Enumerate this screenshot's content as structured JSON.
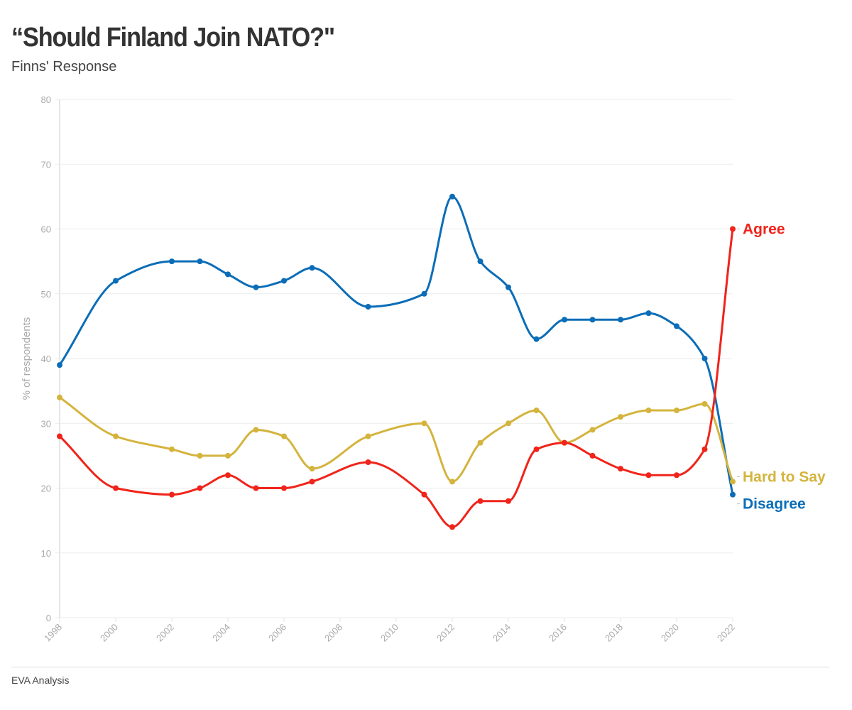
{
  "title": "“Should Finland Join NATO?\"",
  "subtitle": "Finns' Response",
  "source": "EVA Analysis",
  "chart_data": {
    "type": "line",
    "title": "“Should Finland Join NATO?\"",
    "subtitle": "Finns' Response",
    "xlabel": "",
    "ylabel": "% of respondents",
    "xlim": [
      1998,
      2022
    ],
    "ylim": [
      0,
      80
    ],
    "yticks": [
      0,
      10,
      20,
      30,
      40,
      50,
      60,
      70,
      80
    ],
    "xticks": [
      1998,
      2000,
      2002,
      2004,
      2006,
      2008,
      2010,
      2012,
      2014,
      2016,
      2018,
      2020,
      2022
    ],
    "grid": true,
    "legend": "direct-labels-right",
    "x": [
      1998,
      2000,
      2002,
      2003,
      2004,
      2005,
      2006,
      2007,
      2009,
      2011,
      2012,
      2013,
      2014,
      2015,
      2016,
      2017,
      2018,
      2019,
      2020,
      2021,
      2022
    ],
    "series": [
      {
        "name": "Disagree",
        "color": "#0B6DB7",
        "values": [
          39,
          52,
          55,
          55,
          53,
          51,
          52,
          54,
          48,
          50,
          65,
          55,
          51,
          43,
          46,
          46,
          46,
          47,
          45,
          40,
          19
        ]
      },
      {
        "name": "Hard to Say",
        "color": "#D4B43D",
        "values": [
          34,
          28,
          26,
          25,
          25,
          29,
          28,
          23,
          28,
          30,
          21,
          27,
          30,
          32,
          27,
          29,
          31,
          32,
          32,
          33,
          21
        ]
      },
      {
        "name": "Agree",
        "color": "#F0241A",
        "values": [
          28,
          20,
          19,
          20,
          22,
          20,
          20,
          21,
          24,
          19,
          14,
          18,
          18,
          26,
          27,
          25,
          23,
          22,
          22,
          26,
          60
        ]
      }
    ]
  }
}
